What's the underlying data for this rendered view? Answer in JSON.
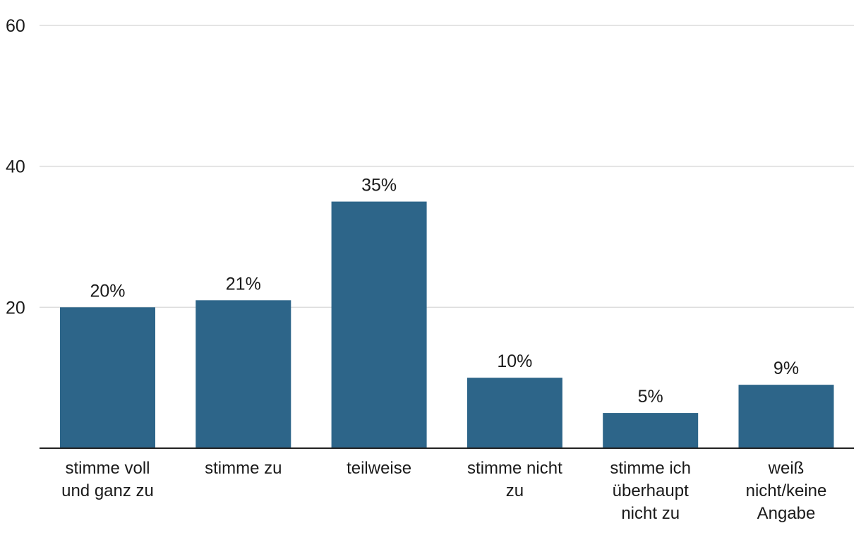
{
  "chart_data": {
    "type": "bar",
    "categories": [
      [
        "stimme voll",
        "und ganz zu"
      ],
      [
        "stimme zu"
      ],
      [
        "teilweise"
      ],
      [
        "stimme nicht",
        "zu"
      ],
      [
        "stimme ich",
        "überhaupt",
        "nicht zu"
      ],
      [
        "weiß",
        "nicht/keine",
        "Angabe"
      ]
    ],
    "values": [
      20,
      21,
      35,
      10,
      5,
      9
    ],
    "value_labels": [
      "20%",
      "21%",
      "35%",
      "10%",
      "5%",
      "9%"
    ],
    "yticks": [
      "20",
      "40",
      "60"
    ],
    "ylim": [
      0,
      60
    ],
    "grid": true,
    "bar_color": "#2d6589"
  }
}
